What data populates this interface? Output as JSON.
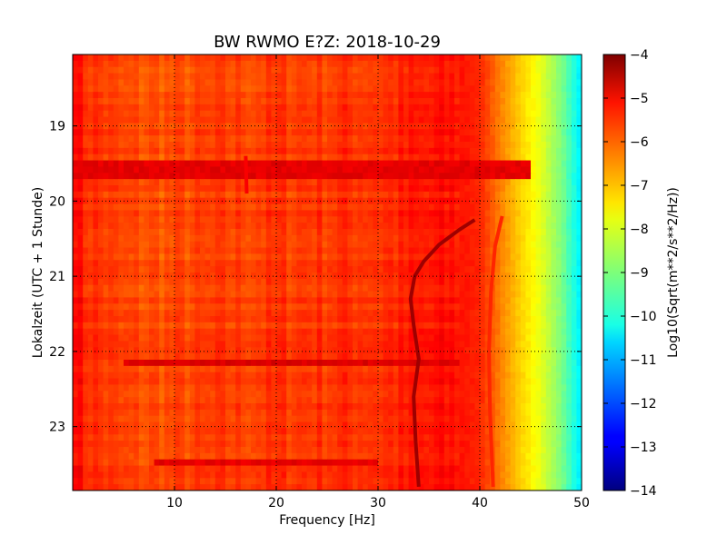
{
  "chart_data": {
    "type": "heatmap",
    "title": "BW RWMO E?Z: 2018-10-29",
    "xlabel": "Frequency [Hz]",
    "ylabel": "Lokalzeit (UTC + 1 Stunde)",
    "xlim": [
      0,
      50
    ],
    "ylim": [
      18.05,
      23.85
    ],
    "y_inverted": true,
    "x_ticks": [
      10,
      20,
      30,
      40,
      50
    ],
    "y_ticks": [
      19,
      20,
      21,
      22,
      23
    ],
    "grid": true,
    "colormap": "jet",
    "colorbar": {
      "label": "Log10(Sqrt(m**2/s**2/Hz))",
      "range": [
        -14,
        -4
      ],
      "ticks": [
        -4,
        -5,
        -6,
        -7,
        -8,
        -9,
        -10,
        -11,
        -12,
        -13,
        -14
      ]
    },
    "frequency_profile": {
      "frequency_hz": [
        0,
        1,
        5,
        10,
        20,
        30,
        38,
        40,
        42,
        44,
        46,
        48,
        50
      ],
      "log10_amplitude": [
        -5.0,
        -5.6,
        -6.0,
        -6.0,
        -5.8,
        -5.7,
        -5.4,
        -5.6,
        -6.5,
        -7.3,
        -8.0,
        -9.0,
        -10.5
      ]
    },
    "features": [
      {
        "kind": "horizontal_band",
        "time_start": 19.5,
        "time_end": 19.7,
        "freq_range": [
          0,
          45
        ],
        "level": -5.0
      },
      {
        "kind": "horizontal_band",
        "time_start": 22.15,
        "time_end": 22.2,
        "freq_range": [
          5,
          38
        ],
        "level": -4.9
      },
      {
        "kind": "horizontal_band",
        "time_start": 23.45,
        "time_end": 23.5,
        "freq_range": [
          8,
          30
        ],
        "level": -5.0
      },
      {
        "kind": "spectral_line",
        "points": [
          [
            39.5,
            20.25
          ],
          [
            38,
            20.38
          ],
          [
            36,
            20.58
          ],
          [
            34.5,
            20.8
          ],
          [
            33.6,
            21.0
          ],
          [
            33.2,
            21.3
          ],
          [
            33.5,
            21.65
          ],
          [
            34.0,
            22.1
          ],
          [
            33.5,
            22.6
          ],
          [
            33.7,
            23.2
          ],
          [
            34.0,
            23.8
          ]
        ],
        "level": -4.3
      },
      {
        "kind": "spectral_line",
        "points": [
          [
            42.2,
            20.2
          ],
          [
            41.5,
            20.6
          ],
          [
            41.1,
            21.2
          ],
          [
            40.9,
            22.0
          ],
          [
            41.0,
            22.8
          ],
          [
            41.3,
            23.8
          ]
        ],
        "level": -5.6
      },
      {
        "kind": "spectral_line",
        "points": [
          [
            17.0,
            19.4
          ],
          [
            17.1,
            19.9
          ]
        ],
        "level": -5.2
      }
    ]
  }
}
